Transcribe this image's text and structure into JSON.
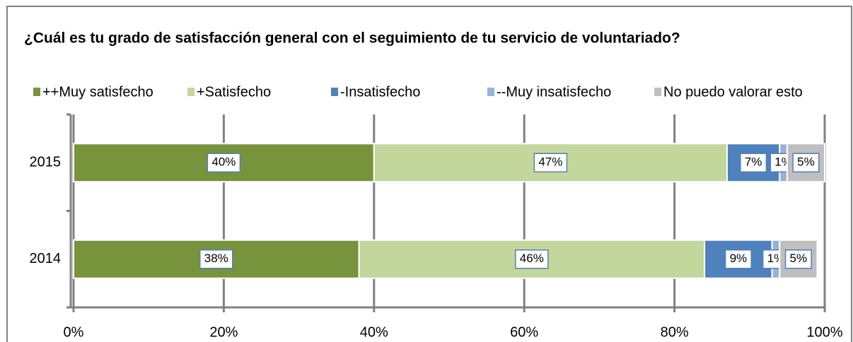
{
  "chart_data": {
    "type": "stacked-barh",
    "title": "¿Cuál es tu grado de satisfacción general con el seguimiento de tu servicio de voluntariado?",
    "categories": [
      "2015",
      "2014"
    ],
    "series": [
      {
        "name": "++Muy satisfecho",
        "color": "#77933c",
        "values": [
          40,
          38
        ],
        "value_labels": [
          "40%",
          "38%"
        ]
      },
      {
        "name": "+Satisfecho",
        "color": "#c3d69b",
        "values": [
          47,
          46
        ],
        "value_labels": [
          "47%",
          "46%"
        ]
      },
      {
        "name": "-Insatisfecho",
        "color": "#4f81bd",
        "values": [
          7,
          9
        ],
        "value_labels": [
          "7%",
          "9%"
        ]
      },
      {
        "name": "--Muy insatisfecho",
        "color": "#95b3d7",
        "values": [
          1,
          1
        ],
        "value_labels": [
          "1%",
          "1%"
        ]
      },
      {
        "name": "No puedo valorar esto",
        "color": "#bfbfbf",
        "values": [
          5,
          5
        ],
        "value_labels": [
          "5%",
          "5%"
        ]
      }
    ],
    "xlim": [
      0,
      100
    ],
    "xticks": [
      {
        "value": 0,
        "label": "0%"
      },
      {
        "value": 20,
        "label": "20%"
      },
      {
        "value": 40,
        "label": "40%"
      },
      {
        "value": 60,
        "label": "60%"
      },
      {
        "value": 80,
        "label": "80%"
      },
      {
        "value": 100,
        "label": "100%"
      }
    ],
    "grid": true,
    "legend": "top"
  }
}
